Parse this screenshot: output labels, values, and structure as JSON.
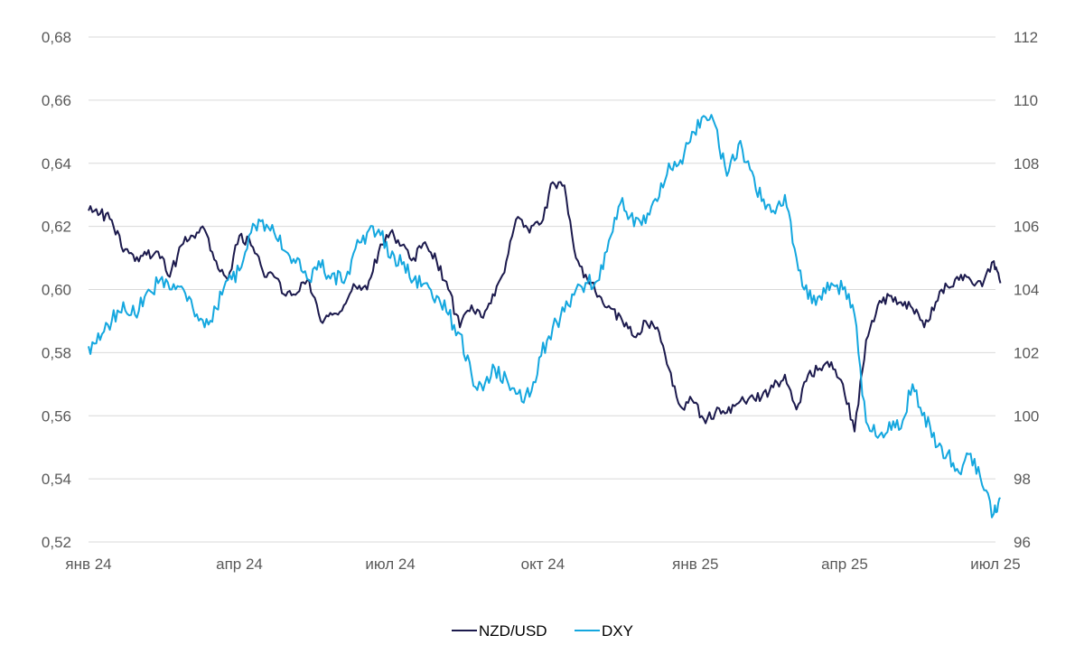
{
  "chart_data": {
    "type": "line",
    "title": "",
    "x_tick_labels": [
      "янв 24",
      "апр 24",
      "июл 24",
      "окт 24",
      "янв 25",
      "апр 25",
      "июл 25"
    ],
    "x_range": [
      "2024-01-01",
      "2025-07-01"
    ],
    "y_left": {
      "ticks": [
        "0,52",
        "0,54",
        "0,56",
        "0,58",
        "0,60",
        "0,62",
        "0,64",
        "0,66",
        "0,68"
      ],
      "ylim": [
        0.52,
        0.68
      ]
    },
    "y_right": {
      "ticks": [
        "96",
        "98",
        "100",
        "102",
        "104",
        "106",
        "108",
        "110",
        "112"
      ],
      "ylim": [
        96,
        112
      ]
    },
    "grid": "horizontal",
    "legend_position": "bottom-center",
    "series": [
      {
        "name": "NZD/USD",
        "axis": "left",
        "color": "#1c1a4d",
        "points": [
          [
            "2024-01-01",
            0.625
          ],
          [
            "2024-01-08",
            0.624
          ],
          [
            "2024-01-15",
            0.622
          ],
          [
            "2024-01-22",
            0.612
          ],
          [
            "2024-01-29",
            0.609
          ],
          [
            "2024-02-05",
            0.611
          ],
          [
            "2024-02-12",
            0.612
          ],
          [
            "2024-02-19",
            0.604
          ],
          [
            "2024-02-26",
            0.614
          ],
          [
            "2024-03-04",
            0.617
          ],
          [
            "2024-03-11",
            0.619
          ],
          [
            "2024-03-18",
            0.609
          ],
          [
            "2024-03-25",
            0.603
          ],
          [
            "2024-04-01",
            0.617
          ],
          [
            "2024-04-08",
            0.614
          ],
          [
            "2024-04-15",
            0.606
          ],
          [
            "2024-04-22",
            0.604
          ],
          [
            "2024-04-29",
            0.598
          ],
          [
            "2024-05-06",
            0.599
          ],
          [
            "2024-05-13",
            0.603
          ],
          [
            "2024-05-20",
            0.59
          ],
          [
            "2024-05-27",
            0.592
          ],
          [
            "2024-06-03",
            0.595
          ],
          [
            "2024-06-10",
            0.601
          ],
          [
            "2024-06-17",
            0.6
          ],
          [
            "2024-06-24",
            0.612
          ],
          [
            "2024-07-01",
            0.618
          ],
          [
            "2024-07-08",
            0.614
          ],
          [
            "2024-07-15",
            0.61
          ],
          [
            "2024-07-22",
            0.615
          ],
          [
            "2024-07-29",
            0.609
          ],
          [
            "2024-08-05",
            0.6
          ],
          [
            "2024-08-12",
            0.588
          ],
          [
            "2024-08-19",
            0.595
          ],
          [
            "2024-08-26",
            0.591
          ],
          [
            "2024-09-02",
            0.598
          ],
          [
            "2024-09-09",
            0.609
          ],
          [
            "2024-09-16",
            0.623
          ],
          [
            "2024-09-23",
            0.618
          ],
          [
            "2024-09-30",
            0.621
          ],
          [
            "2024-10-07",
            0.634
          ],
          [
            "2024-10-14",
            0.633
          ],
          [
            "2024-10-21",
            0.61
          ],
          [
            "2024-10-28",
            0.603
          ],
          [
            "2024-11-04",
            0.598
          ],
          [
            "2024-11-11",
            0.594
          ],
          [
            "2024-11-18",
            0.59
          ],
          [
            "2024-11-25",
            0.585
          ],
          [
            "2024-12-02",
            0.59
          ],
          [
            "2024-12-09",
            0.588
          ],
          [
            "2024-12-16",
            0.575
          ],
          [
            "2024-12-23",
            0.563
          ],
          [
            "2024-12-30",
            0.565
          ],
          [
            "2025-01-06",
            0.559
          ],
          [
            "2025-01-13",
            0.561
          ],
          [
            "2025-01-20",
            0.561
          ],
          [
            "2025-01-27",
            0.564
          ],
          [
            "2025-02-03",
            0.566
          ],
          [
            "2025-02-10",
            0.566
          ],
          [
            "2025-02-17",
            0.569
          ],
          [
            "2025-02-24",
            0.573
          ],
          [
            "2025-03-03",
            0.562
          ],
          [
            "2025-03-10",
            0.573
          ],
          [
            "2025-03-17",
            0.575
          ],
          [
            "2025-03-24",
            0.577
          ],
          [
            "2025-03-31",
            0.57
          ],
          [
            "2025-04-07",
            0.555
          ],
          [
            "2025-04-14",
            0.584
          ],
          [
            "2025-04-21",
            0.595
          ],
          [
            "2025-04-28",
            0.598
          ],
          [
            "2025-05-05",
            0.596
          ],
          [
            "2025-05-12",
            0.594
          ],
          [
            "2025-05-19",
            0.588
          ],
          [
            "2025-05-26",
            0.596
          ],
          [
            "2025-06-02",
            0.601
          ],
          [
            "2025-06-09",
            0.603
          ],
          [
            "2025-06-16",
            0.603
          ],
          [
            "2025-06-23",
            0.601
          ],
          [
            "2025-06-30",
            0.609
          ],
          [
            "2025-07-04",
            0.602
          ]
        ]
      },
      {
        "name": "DXY",
        "axis": "right",
        "color": "#14a7df",
        "points": [
          [
            "2024-01-01",
            102.2
          ],
          [
            "2024-01-08",
            102.4
          ],
          [
            "2024-01-15",
            103.0
          ],
          [
            "2024-01-22",
            103.6
          ],
          [
            "2024-01-29",
            103.2
          ],
          [
            "2024-02-05",
            103.9
          ],
          [
            "2024-02-12",
            104.2
          ],
          [
            "2024-02-19",
            104.0
          ],
          [
            "2024-02-26",
            104.1
          ],
          [
            "2024-03-04",
            103.4
          ],
          [
            "2024-03-11",
            102.8
          ],
          [
            "2024-03-18",
            103.4
          ],
          [
            "2024-03-25",
            104.3
          ],
          [
            "2024-04-01",
            104.6
          ],
          [
            "2024-04-08",
            105.8
          ],
          [
            "2024-04-15",
            106.2
          ],
          [
            "2024-04-22",
            105.8
          ],
          [
            "2024-04-29",
            105.2
          ],
          [
            "2024-05-06",
            105.0
          ],
          [
            "2024-05-13",
            104.3
          ],
          [
            "2024-05-20",
            104.7
          ],
          [
            "2024-05-27",
            104.5
          ],
          [
            "2024-06-03",
            104.2
          ],
          [
            "2024-06-10",
            105.3
          ],
          [
            "2024-06-17",
            105.8
          ],
          [
            "2024-06-24",
            105.9
          ],
          [
            "2024-07-01",
            105.0
          ],
          [
            "2024-07-08",
            104.8
          ],
          [
            "2024-07-15",
            104.3
          ],
          [
            "2024-07-22",
            104.2
          ],
          [
            "2024-07-29",
            103.8
          ],
          [
            "2024-08-05",
            103.2
          ],
          [
            "2024-08-12",
            102.6
          ],
          [
            "2024-08-19",
            101.3
          ],
          [
            "2024-08-26",
            100.8
          ],
          [
            "2024-09-02",
            101.5
          ],
          [
            "2024-09-09",
            101.2
          ],
          [
            "2024-09-16",
            100.7
          ],
          [
            "2024-09-23",
            100.6
          ],
          [
            "2024-09-30",
            101.9
          ],
          [
            "2024-10-07",
            102.8
          ],
          [
            "2024-10-14",
            103.3
          ],
          [
            "2024-10-21",
            104.0
          ],
          [
            "2024-10-28",
            104.2
          ],
          [
            "2024-11-04",
            104.3
          ],
          [
            "2024-11-11",
            105.7
          ],
          [
            "2024-11-18",
            106.9
          ],
          [
            "2024-11-25",
            106.0
          ],
          [
            "2024-12-02",
            106.1
          ],
          [
            "2024-12-09",
            106.8
          ],
          [
            "2024-12-16",
            108.0
          ],
          [
            "2024-12-23",
            108.1
          ],
          [
            "2024-12-30",
            109.0
          ],
          [
            "2025-01-06",
            109.5
          ],
          [
            "2025-01-13",
            109.2
          ],
          [
            "2025-01-20",
            107.6
          ],
          [
            "2025-01-27",
            108.6
          ],
          [
            "2025-02-03",
            107.8
          ],
          [
            "2025-02-10",
            106.8
          ],
          [
            "2025-02-17",
            106.5
          ],
          [
            "2025-02-24",
            107.0
          ],
          [
            "2025-03-03",
            105.0
          ],
          [
            "2025-03-10",
            103.7
          ],
          [
            "2025-03-17",
            103.8
          ],
          [
            "2025-03-24",
            104.2
          ],
          [
            "2025-03-31",
            104.0
          ],
          [
            "2025-04-07",
            103.2
          ],
          [
            "2025-04-14",
            99.8
          ],
          [
            "2025-04-21",
            99.3
          ],
          [
            "2025-04-28",
            99.8
          ],
          [
            "2025-05-05",
            99.6
          ],
          [
            "2025-05-12",
            101.0
          ],
          [
            "2025-05-19",
            100.1
          ],
          [
            "2025-05-26",
            99.0
          ],
          [
            "2025-06-02",
            98.8
          ],
          [
            "2025-06-09",
            98.2
          ],
          [
            "2025-06-16",
            98.8
          ],
          [
            "2025-06-23",
            97.8
          ],
          [
            "2025-06-30",
            96.9
          ],
          [
            "2025-07-04",
            97.4
          ]
        ]
      }
    ]
  }
}
